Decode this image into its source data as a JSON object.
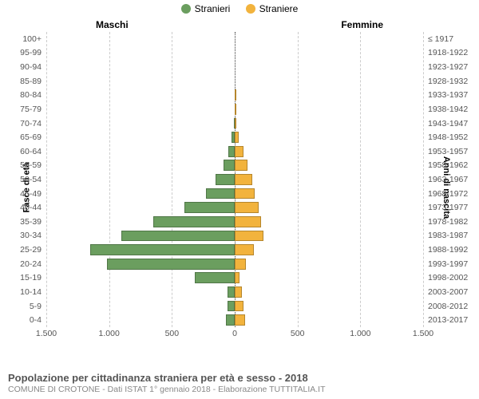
{
  "legend": {
    "male": {
      "label": "Stranieri",
      "color": "#6b9e5f"
    },
    "female": {
      "label": "Straniere",
      "color": "#f2b33d"
    }
  },
  "header": {
    "male": "Maschi",
    "female": "Femmine"
  },
  "left_axis_title": "Fasce di età",
  "right_axis_title": "Anni di nascita",
  "footer_title": "Popolazione per cittadinanza straniera per età e sesso - 2018",
  "footer_sub": "COMUNE DI CROTONE - Dati ISTAT 1° gennaio 2018 - Elaborazione TUTTITALIA.IT",
  "chart": {
    "type": "population-pyramid",
    "xmax": 1500,
    "xticks": [
      1500,
      1000,
      500,
      0,
      500,
      1000,
      1500
    ],
    "grid_color": "#cccccc",
    "background_color": "#ffffff",
    "bar_height_ratio": 0.78,
    "rows": [
      {
        "age": "100+",
        "m": 0,
        "f": 0,
        "year": "≤ 1917"
      },
      {
        "age": "95-99",
        "m": 0,
        "f": 0,
        "year": "1918-1922"
      },
      {
        "age": "90-94",
        "m": 0,
        "f": 0,
        "year": "1923-1927"
      },
      {
        "age": "85-89",
        "m": 0,
        "f": 0,
        "year": "1928-1932"
      },
      {
        "age": "80-84",
        "m": 0,
        "f": 5,
        "year": "1933-1937"
      },
      {
        "age": "75-79",
        "m": 0,
        "f": 8,
        "year": "1938-1942"
      },
      {
        "age": "70-74",
        "m": 5,
        "f": 10,
        "year": "1943-1947"
      },
      {
        "age": "65-69",
        "m": 25,
        "f": 30,
        "year": "1948-1952"
      },
      {
        "age": "60-64",
        "m": 50,
        "f": 70,
        "year": "1953-1957"
      },
      {
        "age": "55-59",
        "m": 90,
        "f": 100,
        "year": "1958-1962"
      },
      {
        "age": "50-54",
        "m": 150,
        "f": 140,
        "year": "1963-1967"
      },
      {
        "age": "45-49",
        "m": 230,
        "f": 160,
        "year": "1968-1972"
      },
      {
        "age": "40-44",
        "m": 400,
        "f": 190,
        "year": "1973-1977"
      },
      {
        "age": "35-39",
        "m": 650,
        "f": 210,
        "year": "1978-1982"
      },
      {
        "age": "30-34",
        "m": 900,
        "f": 230,
        "year": "1983-1987"
      },
      {
        "age": "25-29",
        "m": 1150,
        "f": 150,
        "year": "1988-1992"
      },
      {
        "age": "20-24",
        "m": 1020,
        "f": 90,
        "year": "1993-1997"
      },
      {
        "age": "15-19",
        "m": 320,
        "f": 40,
        "year": "1998-2002"
      },
      {
        "age": "10-14",
        "m": 60,
        "f": 60,
        "year": "2003-2007"
      },
      {
        "age": "5-9",
        "m": 60,
        "f": 70,
        "year": "2008-2012"
      },
      {
        "age": "0-4",
        "m": 70,
        "f": 80,
        "year": "2013-2017"
      }
    ]
  }
}
